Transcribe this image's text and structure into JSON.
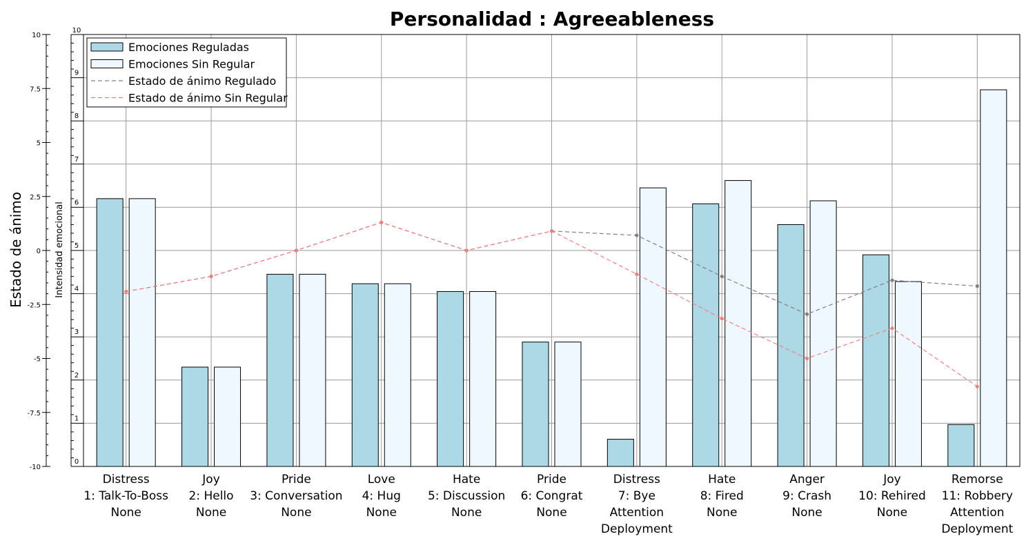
{
  "chart_data": {
    "type": "bar",
    "title": "Personalidad : Agreeableness",
    "ylabel_left": "Estado de ánimo",
    "ylabel_right": "Intensidad emocional",
    "left_axis": {
      "ylim": [
        -10,
        10
      ],
      "ticks": [
        "10",
        "7.5",
        "5",
        "2.5",
        "0",
        "-2.5",
        "-5",
        "-7.5",
        "-10"
      ]
    },
    "right_axis": {
      "ylim": [
        0,
        10
      ],
      "ticks": [
        "10",
        "9",
        "8",
        "7",
        "6",
        "5",
        "4",
        "3",
        "2",
        "1",
        "0"
      ]
    },
    "grid": true,
    "legend_position": "top-left",
    "legend": [
      {
        "label": "Emociones Reguladas",
        "kind": "bar",
        "color": "#add8e6"
      },
      {
        "label": "Emociones Sin Regular",
        "kind": "bar",
        "color": "#f0f8ff"
      },
      {
        "label": "Estado de ánimo Regulado",
        "kind": "dashed-line",
        "color": "#808080"
      },
      {
        "label": "Estado de ánimo Sin Regular",
        "kind": "dashed-line",
        "color": "#f08080"
      }
    ],
    "categories": [
      [
        "Distress",
        "1: Talk-To-Boss",
        "None"
      ],
      [
        "Joy",
        "2: Hello",
        "None"
      ],
      [
        "Pride",
        "3: Conversation",
        "None"
      ],
      [
        "Love",
        "4: Hug",
        "None"
      ],
      [
        "Hate",
        "5: Discussion",
        "None"
      ],
      [
        "Pride",
        "6: Congrat",
        "None"
      ],
      [
        "Distress",
        "7: Bye",
        "Attention",
        "Deployment"
      ],
      [
        "Hate",
        "8: Fired",
        "None"
      ],
      [
        "Anger",
        "9: Crash",
        "None"
      ],
      [
        "Joy",
        "10: Rehired",
        "None"
      ],
      [
        "Remorse",
        "11: Robbery",
        "Attention",
        "Deployment"
      ]
    ],
    "series": [
      {
        "name": "Emociones Reguladas",
        "axis": "right",
        "kind": "bar",
        "color": "#add8e6",
        "values": [
          6.2,
          2.3,
          4.45,
          4.23,
          4.05,
          2.88,
          0.63,
          6.08,
          5.6,
          4.9,
          0.97
        ]
      },
      {
        "name": "Emociones Sin Regular",
        "axis": "right",
        "kind": "bar",
        "color": "#f0f8ff",
        "values": [
          6.2,
          2.3,
          4.45,
          4.23,
          4.05,
          2.88,
          6.45,
          6.62,
          6.15,
          4.28,
          8.72
        ]
      },
      {
        "name": "Estado de ánimo Regulado",
        "axis": "left",
        "kind": "line",
        "color": "#808080",
        "values": [
          -1.9,
          -1.2,
          0.0,
          1.3,
          0.0,
          0.9,
          0.7,
          -1.2,
          -2.95,
          -1.38,
          -1.65
        ]
      },
      {
        "name": "Estado de ánimo Sin Regular",
        "axis": "left",
        "kind": "line",
        "color": "#f08080",
        "values": [
          -1.9,
          -1.2,
          0.0,
          1.3,
          0.0,
          0.9,
          -1.1,
          -3.15,
          -5.0,
          -3.6,
          -6.3
        ]
      }
    ]
  }
}
